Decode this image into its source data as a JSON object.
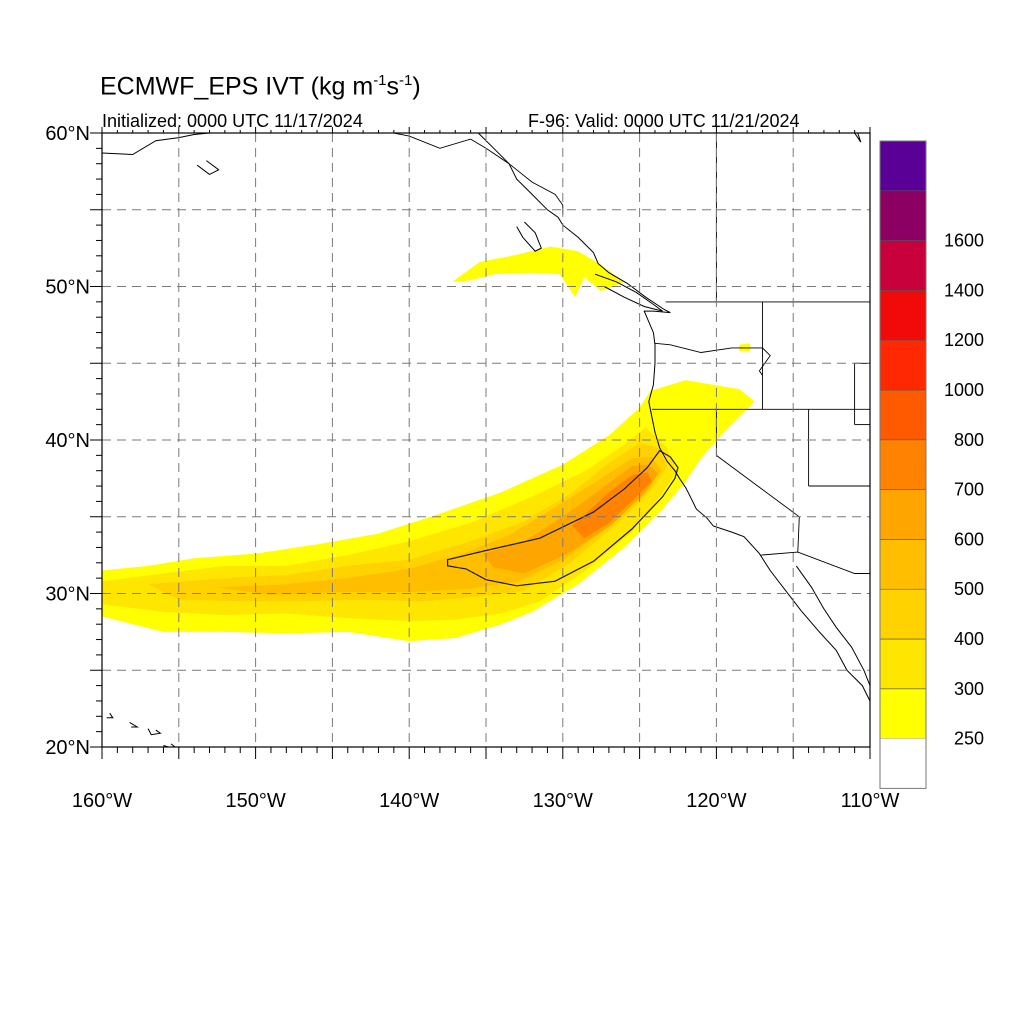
{
  "title": {
    "main": "ECMWF_EPS IVT (kg m",
    "exp1": "-1",
    "mid": "s",
    "exp2": "-1",
    "end": ")"
  },
  "initialized": "Initialized: 0000 UTC 11/17/2024",
  "valid": "F-96: Valid: 0000 UTC 11/21/2024",
  "map": {
    "projection": "equirectangular",
    "lon_range": [
      -160,
      -110
    ],
    "lat_range": [
      20,
      60
    ],
    "grid": true,
    "lat_ticks": [
      {
        "lat": 60,
        "label": "60°N"
      },
      {
        "lat": 50,
        "label": "50°N"
      },
      {
        "lat": 40,
        "label": "40°N"
      },
      {
        "lat": 30,
        "label": "30°N"
      },
      {
        "lat": 20,
        "label": "20°N"
      }
    ],
    "lon_ticks": [
      {
        "lon": -160,
        "label": "160°W"
      },
      {
        "lon": -150,
        "label": "150°W"
      },
      {
        "lon": -140,
        "label": "140°W"
      },
      {
        "lon": -130,
        "label": "130°W"
      },
      {
        "lon": -120,
        "label": "120°W"
      },
      {
        "lon": -110,
        "label": "110°W"
      }
    ]
  },
  "colorbar": {
    "placement": "right",
    "levels": [
      {
        "label": "250",
        "color": "#ffff00"
      },
      {
        "label": "300",
        "color": "#ffe600"
      },
      {
        "label": "400",
        "color": "#ffd200"
      },
      {
        "label": "500",
        "color": "#ffbe00"
      },
      {
        "label": "600",
        "color": "#ffa500"
      },
      {
        "label": "700",
        "color": "#ff8200"
      },
      {
        "label": "800",
        "color": "#ff5a00"
      },
      {
        "label": "1000",
        "color": "#ff2800"
      },
      {
        "label": "1200",
        "color": "#f00a0a"
      },
      {
        "label": "1400",
        "color": "#c8003c"
      },
      {
        "label": "1600",
        "color": "#8c0064"
      }
    ],
    "top_color": "#5a0096",
    "bottom_color": "#ffffff"
  },
  "ivt_bands": [
    {
      "level_color": "#ffff00",
      "polygons": [
        [
          [
            -160,
            31.5
          ],
          [
            -157,
            31.8
          ],
          [
            -154,
            32.3
          ],
          [
            -150,
            32.6
          ],
          [
            -146,
            33.2
          ],
          [
            -142,
            33.9
          ],
          [
            -138,
            35.2
          ],
          [
            -134,
            36.6
          ],
          [
            -130,
            38.4
          ],
          [
            -127,
            40.3
          ],
          [
            -125,
            42.1
          ],
          [
            -124.3,
            43.2
          ],
          [
            -122,
            43.9
          ],
          [
            -118.5,
            43.3
          ],
          [
            -117.5,
            42.5
          ],
          [
            -119.5,
            40.5
          ],
          [
            -121,
            38.8
          ],
          [
            -122,
            37.3
          ],
          [
            -123.5,
            35.5
          ],
          [
            -126,
            33
          ],
          [
            -129,
            30.6
          ],
          [
            -132,
            28.8
          ],
          [
            -134,
            28
          ],
          [
            -137,
            27.1
          ],
          [
            -140,
            26.9
          ],
          [
            -144,
            27.5
          ],
          [
            -148,
            27.4
          ],
          [
            -152,
            27.5
          ],
          [
            -156,
            27.5
          ],
          [
            -158,
            28
          ],
          [
            -160,
            28.5
          ]
        ],
        [
          [
            -137.2,
            50.3
          ],
          [
            -135.4,
            51.6
          ],
          [
            -133.3,
            52
          ],
          [
            -130.8,
            52.6
          ],
          [
            -129,
            52.3
          ],
          [
            -127.5,
            51.4
          ],
          [
            -126,
            50.3
          ],
          [
            -127.5,
            49.7
          ],
          [
            -128.6,
            50.6
          ],
          [
            -129.2,
            49.3
          ],
          [
            -130.2,
            50.8
          ],
          [
            -132,
            50.9
          ],
          [
            -134.5,
            50.8
          ],
          [
            -136,
            50.4
          ]
        ],
        [
          [
            -118.5,
            46.2
          ],
          [
            -117.8,
            46.3
          ],
          [
            -117.8,
            45.8
          ],
          [
            -118.5,
            45.8
          ]
        ]
      ]
    },
    {
      "level_color": "#ffe600",
      "polygons": [
        [
          [
            -160,
            30.8
          ],
          [
            -156,
            31.3
          ],
          [
            -152,
            31.8
          ],
          [
            -148,
            31.8
          ],
          [
            -144,
            32.5
          ],
          [
            -140,
            33.4
          ],
          [
            -136,
            34.6
          ],
          [
            -132,
            36.3
          ],
          [
            -128.5,
            38
          ],
          [
            -126,
            39.7
          ],
          [
            -124.6,
            40.8
          ],
          [
            -123.2,
            39.5
          ],
          [
            -122.6,
            38
          ],
          [
            -123.5,
            36.5
          ],
          [
            -125.5,
            34
          ],
          [
            -128.5,
            31.5
          ],
          [
            -131.5,
            29.5
          ],
          [
            -134,
            28.7
          ],
          [
            -137,
            28.3
          ],
          [
            -140,
            28.2
          ],
          [
            -144,
            28.4
          ],
          [
            -148,
            28.7
          ],
          [
            -152,
            28.6
          ],
          [
            -156,
            28.8
          ],
          [
            -160,
            29.3
          ]
        ]
      ]
    },
    {
      "level_color": "#ffd200",
      "polygons": [
        [
          [
            -157,
            30.6
          ],
          [
            -152,
            31
          ],
          [
            -148,
            31.2
          ],
          [
            -144,
            31.8
          ],
          [
            -140,
            32.2
          ],
          [
            -136,
            33.4
          ],
          [
            -132.5,
            34.7
          ],
          [
            -129.5,
            36.5
          ],
          [
            -127,
            38.5
          ],
          [
            -125,
            39.8
          ],
          [
            -123.8,
            39.5
          ],
          [
            -123.2,
            38.3
          ],
          [
            -124.2,
            36.8
          ],
          [
            -126.5,
            34.5
          ],
          [
            -129.5,
            32
          ],
          [
            -132.5,
            30.2
          ],
          [
            -135.5,
            29.8
          ],
          [
            -139,
            29.5
          ],
          [
            -143,
            29.6
          ],
          [
            -147,
            29.5
          ],
          [
            -151,
            29.5
          ],
          [
            -155,
            29.6
          ]
        ]
      ]
    },
    {
      "level_color": "#ffbe00",
      "polygons": [
        [
          [
            -152.5,
            30.4
          ],
          [
            -148,
            30.6
          ],
          [
            -144,
            31
          ],
          [
            -140,
            31.6
          ],
          [
            -136.5,
            32.6
          ],
          [
            -133.5,
            33.8
          ],
          [
            -130.5,
            35.6
          ],
          [
            -127.5,
            37.5
          ],
          [
            -125.5,
            38.8
          ],
          [
            -124.2,
            38.9
          ],
          [
            -123.6,
            38
          ],
          [
            -124.5,
            36.7
          ],
          [
            -126.8,
            34.5
          ],
          [
            -129.8,
            32.3
          ],
          [
            -132.8,
            30.8
          ],
          [
            -136,
            30.3
          ],
          [
            -140,
            30.1
          ],
          [
            -144.5,
            30.1
          ],
          [
            -149,
            29.9
          ]
        ]
      ]
    },
    {
      "level_color": "#ffa500",
      "polygons": [
        [
          [
            -135.2,
            32.6
          ],
          [
            -132.5,
            33.4
          ],
          [
            -130,
            35
          ],
          [
            -127.5,
            36.8
          ],
          [
            -125.5,
            38.3
          ],
          [
            -124.4,
            38.4
          ],
          [
            -123.8,
            37.8
          ],
          [
            -124.7,
            36.5
          ],
          [
            -126.8,
            34.5
          ],
          [
            -129.5,
            32.7
          ],
          [
            -132.5,
            31.3
          ],
          [
            -134.5,
            31.7
          ]
        ]
      ]
    },
    {
      "level_color": "#ff8200",
      "polygons": [
        [
          [
            -128.5,
            35.2
          ],
          [
            -127,
            36.6
          ],
          [
            -125.5,
            37.7
          ],
          [
            -124.5,
            37.9
          ],
          [
            -124.2,
            37.3
          ],
          [
            -125.2,
            36.3
          ],
          [
            -127,
            34.6
          ],
          [
            -128.6,
            33.6
          ],
          [
            -129.4,
            34.4
          ]
        ]
      ]
    }
  ],
  "contour_line": [
    [
      -137.5,
      32.2
    ],
    [
      -135,
      32.8
    ],
    [
      -131.5,
      33.6
    ],
    [
      -128,
      35.3
    ],
    [
      -126,
      36.8
    ],
    [
      -124.5,
      38.2
    ],
    [
      -123.7,
      39.3
    ],
    [
      -123,
      38.9
    ],
    [
      -122.5,
      38.2
    ],
    [
      -122.7,
      37.5
    ],
    [
      -123.5,
      36.3
    ],
    [
      -125.5,
      34.2
    ],
    [
      -128,
      32.1
    ],
    [
      -130.5,
      30.8
    ],
    [
      -133,
      30.5
    ],
    [
      -135,
      30.9
    ],
    [
      -136.3,
      31.6
    ],
    [
      -137.5,
      31.8
    ]
  ],
  "coastlines": [
    [
      [
        -135.5,
        60
      ],
      [
        -134.5,
        59
      ],
      [
        -133.5,
        58
      ],
      [
        -133,
        57
      ],
      [
        -132,
        56
      ],
      [
        -131,
        55
      ],
      [
        -130.3,
        54.5
      ],
      [
        -130,
        54
      ],
      [
        -129,
        53.2
      ],
      [
        -128,
        52.2
      ],
      [
        -127.7,
        51.5
      ],
      [
        -127,
        50.9
      ],
      [
        -125.8,
        50.2
      ],
      [
        -124.6,
        49.3
      ],
      [
        -123.4,
        48.5
      ],
      [
        -123,
        48.3
      ],
      [
        -124.1,
        48.4
      ],
      [
        -124.7,
        48.4
      ],
      [
        -124.1,
        47
      ],
      [
        -124,
        46.2
      ],
      [
        -124,
        45
      ],
      [
        -124.1,
        43.6
      ],
      [
        -124.4,
        42.5
      ],
      [
        -124.2,
        41.5
      ],
      [
        -124,
        40.5
      ],
      [
        -123.7,
        39.5
      ],
      [
        -123.2,
        38.6
      ],
      [
        -122.7,
        38
      ],
      [
        -122.4,
        37.5
      ],
      [
        -122,
        36.9
      ],
      [
        -121.8,
        36.5
      ],
      [
        -121.3,
        35.5
      ],
      [
        -120.6,
        34.9
      ],
      [
        -120.2,
        34.4
      ],
      [
        -119,
        34
      ],
      [
        -118.2,
        33.7
      ],
      [
        -117.2,
        32.6
      ],
      [
        -116.5,
        31.5
      ],
      [
        -115.5,
        30.2
      ],
      [
        -114.5,
        28.9
      ],
      [
        -113.3,
        27.5
      ],
      [
        -112.2,
        26.3
      ],
      [
        -111.5,
        25
      ],
      [
        -110.5,
        24
      ],
      [
        -110,
        23
      ]
    ],
    [
      [
        -114.8,
        31.8
      ],
      [
        -113.8,
        30.4
      ],
      [
        -113,
        29
      ],
      [
        -112.2,
        27.8
      ],
      [
        -111.2,
        26.5
      ],
      [
        -110.4,
        25
      ],
      [
        -110,
        24
      ]
    ],
    [
      [
        -127.9,
        50.8
      ],
      [
        -126.5,
        50.3
      ],
      [
        -125.2,
        49.6
      ],
      [
        -124.2,
        48.9
      ],
      [
        -123.5,
        48.4
      ],
      [
        -124.7,
        48.7
      ],
      [
        -126,
        49.3
      ],
      [
        -127.3,
        50
      ]
    ],
    [
      [
        -132.5,
        54.2
      ],
      [
        -131.8,
        53.5
      ],
      [
        -131.4,
        52.5
      ],
      [
        -131.8,
        52.3
      ],
      [
        -132.6,
        53.2
      ],
      [
        -133,
        53.9
      ]
    ],
    [
      [
        -160,
        58.7
      ],
      [
        -158,
        58.6
      ],
      [
        -156.5,
        59.5
      ],
      [
        -155,
        59.7
      ],
      [
        -154,
        59.9
      ],
      [
        -153,
        60
      ]
    ],
    [
      [
        -153.8,
        57.9
      ],
      [
        -153,
        57.3
      ],
      [
        -152.4,
        57.6
      ],
      [
        -153.2,
        58.2
      ]
    ],
    [
      [
        -111,
        60
      ],
      [
        -110.6,
        59.4
      ],
      [
        -110.8,
        60
      ]
    ],
    [
      [
        -159.5,
        22.2
      ],
      [
        -159.3,
        21.9
      ],
      [
        -159.7,
        21.9
      ]
    ],
    [
      [
        -158.2,
        21.6
      ],
      [
        -157.7,
        21.3
      ],
      [
        -158.1,
        21.3
      ]
    ],
    [
      [
        -157,
        21.2
      ],
      [
        -156.8,
        20.8
      ],
      [
        -156.2,
        20.9
      ],
      [
        -156.5,
        21.1
      ]
    ],
    [
      [
        -156,
        20.1
      ],
      [
        -155,
        19.8
      ],
      [
        -155.5,
        20.2
      ]
    ]
  ],
  "borders": [
    [
      [
        -141,
        60
      ],
      [
        -140,
        59.8
      ],
      [
        -138,
        59
      ],
      [
        -136,
        59.6
      ],
      [
        -135,
        59
      ],
      [
        -133.5,
        58
      ],
      [
        -132,
        56.8
      ],
      [
        -130.5,
        56
      ],
      [
        -130,
        55.3
      ],
      [
        -130,
        54.7
      ]
    ],
    [
      [
        -123.3,
        49
      ],
      [
        -110,
        49
      ]
    ],
    [
      [
        -124.2,
        42
      ],
      [
        -117,
        42
      ],
      [
        -115.5,
        42
      ],
      [
        -112,
        42
      ],
      [
        -110,
        42
      ]
    ],
    [
      [
        -120,
        42
      ],
      [
        -120,
        39
      ],
      [
        -114.6,
        35
      ],
      [
        -114.7,
        32.7
      ]
    ],
    [
      [
        -117.1,
        32.5
      ],
      [
        -114.7,
        32.7
      ],
      [
        -111,
        31.3
      ],
      [
        -110,
        31.3
      ]
    ],
    [
      [
        -124,
        46.3
      ],
      [
        -123,
        46.2
      ],
      [
        -121,
        45.7
      ],
      [
        -119,
        46
      ],
      [
        -117,
        46
      ]
    ],
    [
      [
        -117,
        49
      ],
      [
        -117,
        42
      ]
    ],
    [
      [
        -117,
        46
      ],
      [
        -116.5,
        45.5
      ],
      [
        -117.2,
        44.5
      ],
      [
        -117,
        44.2
      ]
    ],
    [
      [
        -111,
        45
      ],
      [
        -110,
        45
      ]
    ],
    [
      [
        -111,
        45
      ],
      [
        -111,
        41
      ]
    ],
    [
      [
        -114,
        42
      ],
      [
        -114,
        37
      ]
    ],
    [
      [
        -114,
        37
      ],
      [
        -110,
        37
      ]
    ],
    [
      [
        -111,
        41
      ],
      [
        -110,
        41
      ]
    ],
    [
      [
        -120,
        60
      ],
      [
        -120,
        49
      ]
    ]
  ]
}
